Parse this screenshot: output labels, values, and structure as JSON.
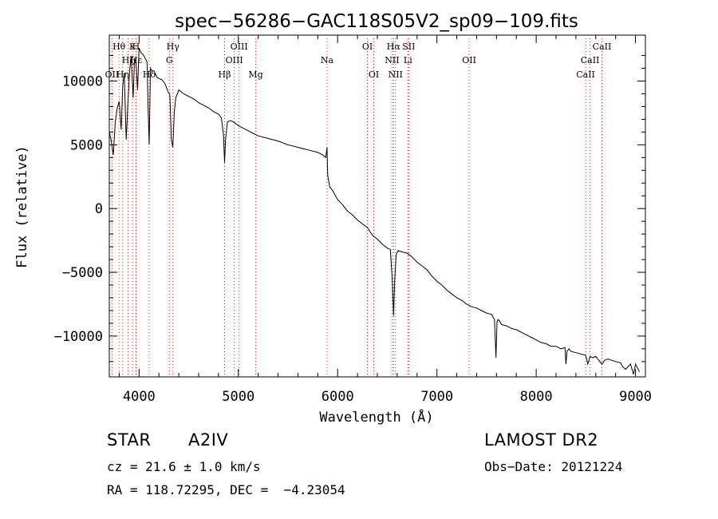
{
  "chart_data": {
    "type": "line",
    "title": "spec−56286−GAC118S05V2_sp09−109.fits",
    "xlabel": "Wavelength (Å)",
    "ylabel": "Flux (relative)",
    "xlim": [
      3700,
      9100
    ],
    "ylim": [
      -13200,
      13600
    ],
    "x_ticks": [
      4000,
      5000,
      6000,
      7000,
      8000,
      9000
    ],
    "x_tick_labels": [
      "4000",
      "5000",
      "6000",
      "7000",
      "8000",
      "9000"
    ],
    "y_ticks": [
      -10000,
      -5000,
      0,
      5000,
      10000
    ],
    "y_tick_labels": [
      "−10000",
      "−5000",
      "0",
      "5000",
      "10000"
    ],
    "grid": false,
    "line_color": "#000000",
    "marker_color": "#c00000",
    "series": [
      {
        "x": [
          3700,
          3720,
          3740,
          3760,
          3780,
          3800,
          3820,
          3835,
          3850,
          3870,
          3889,
          3905,
          3920,
          3940,
          3955,
          3970,
          3985,
          4000,
          4020,
          4040,
          4060,
          4080,
          4090,
          4102,
          4115,
          4130,
          4150,
          4180,
          4200,
          4230,
          4260,
          4290,
          4310,
          4325,
          4340,
          4355,
          4370,
          4400,
          4450,
          4500,
          4550,
          4600,
          4650,
          4700,
          4750,
          4800,
          4830,
          4850,
          4861,
          4872,
          4890,
          4920,
          4950,
          5000,
          5050,
          5100,
          5150,
          5200,
          5300,
          5400,
          5500,
          5600,
          5700,
          5800,
          5850,
          5880,
          5893,
          5900,
          5920,
          5950,
          6000,
          6050,
          6100,
          6150,
          6200,
          6250,
          6300,
          6350,
          6400,
          6450,
          6500,
          6530,
          6550,
          6563,
          6575,
          6590,
          6610,
          6650,
          6700,
          6750,
          6800,
          6850,
          6900,
          6950,
          7000,
          7050,
          7100,
          7150,
          7200,
          7250,
          7300,
          7350,
          7400,
          7450,
          7500,
          7550,
          7580,
          7595,
          7605,
          7615,
          7630,
          7650,
          7700,
          7750,
          7800,
          7850,
          7900,
          7950,
          8000,
          8050,
          8100,
          8150,
          8200,
          8250,
          8290,
          8300,
          8310,
          8330,
          8350,
          8400,
          8450,
          8498,
          8520,
          8542,
          8570,
          8600,
          8620,
          8662,
          8690,
          8720,
          8760,
          8800,
          8850,
          8870,
          8900,
          8950,
          8980,
          9000,
          9020,
          9040
        ],
        "y": [
          6000,
          5300,
          4200,
          6800,
          7900,
          8400,
          6200,
          9600,
          10600,
          5400,
          8500,
          10800,
          11900,
          8700,
          11800,
          11300,
          9300,
          12600,
          12200,
          12100,
          11800,
          11500,
          8200,
          5000,
          11000,
          10800,
          10800,
          10300,
          10200,
          10100,
          9800,
          9200,
          8900,
          5400,
          4800,
          7600,
          8700,
          9300,
          9000,
          8800,
          8600,
          8300,
          8100,
          7900,
          7600,
          7400,
          7100,
          5800,
          3600,
          5500,
          6800,
          6900,
          6800,
          6500,
          6300,
          6100,
          5900,
          5700,
          5500,
          5300,
          5000,
          4800,
          4600,
          4400,
          4200,
          4000,
          4800,
          2600,
          1700,
          1400,
          700,
          300,
          -200,
          -500,
          -900,
          -1200,
          -1500,
          -2100,
          -2400,
          -2800,
          -3100,
          -3200,
          -5500,
          -8400,
          -5600,
          -3600,
          -3300,
          -3400,
          -3500,
          -3800,
          -4200,
          -4500,
          -4800,
          -5300,
          -5700,
          -6000,
          -6400,
          -6700,
          -7000,
          -7200,
          -7500,
          -7700,
          -7800,
          -8000,
          -8200,
          -8300,
          -8700,
          -11700,
          -8900,
          -8700,
          -8800,
          -9100,
          -9200,
          -9400,
          -9500,
          -9700,
          -9900,
          -10100,
          -10300,
          -10500,
          -10600,
          -10800,
          -10800,
          -11000,
          -10900,
          -12200,
          -11200,
          -11000,
          -11200,
          -11300,
          -11400,
          -11500,
          -12200,
          -11600,
          -11700,
          -11600,
          -11800,
          -12200,
          -11900,
          -11800,
          -11900,
          -12000,
          -12100,
          -12400,
          -12600,
          -12200,
          -13000,
          -12200,
          -12500,
          -12800
        ]
      }
    ],
    "lines": [
      {
        "label": "OII",
        "wl": 3727,
        "row": 2
      },
      {
        "label": "Hθ",
        "wl": 3798,
        "row": 0
      },
      {
        "label": "Hη",
        "wl": 3835,
        "row": 2
      },
      {
        "label": "Hζ",
        "wl": 3889,
        "row": 1
      },
      {
        "label": "Hε",
        "wl": 3970,
        "row": 1
      },
      {
        "label": "H",
        "wl": 3969,
        "row": 0
      },
      {
        "label": "K",
        "wl": 3934,
        "row": 0
      },
      {
        "label": "Hδ",
        "wl": 4102,
        "row": 2
      },
      {
        "label": "Hγ",
        "wl": 4341,
        "row": 0
      },
      {
        "label": "G",
        "wl": 4305,
        "row": 1
      },
      {
        "label": "Hβ",
        "wl": 4861,
        "row": 2
      },
      {
        "label": "OIII",
        "wl": 4959,
        "row": 1
      },
      {
        "label": "OIII",
        "wl": 5007,
        "row": 0
      },
      {
        "label": "Mg",
        "wl": 5175,
        "row": 2
      },
      {
        "label": "Na",
        "wl": 5893,
        "row": 1
      },
      {
        "label": "OI",
        "wl": 6300,
        "row": 0
      },
      {
        "label": "OI",
        "wl": 6364,
        "row": 2
      },
      {
        "label": "NII",
        "wl": 6548,
        "row": 1
      },
      {
        "label": "Hα",
        "wl": 6563,
        "row": 0
      },
      {
        "label": "NII",
        "wl": 6583,
        "row": 2
      },
      {
        "label": "SII",
        "wl": 6716,
        "row": 0
      },
      {
        "label": "Li",
        "wl": 6708,
        "row": 1
      },
      {
        "label": "OII",
        "wl": 7325,
        "row": 1
      },
      {
        "label": "CaII",
        "wl": 8498,
        "row": 2
      },
      {
        "label": "CaII",
        "wl": 8542,
        "row": 1
      },
      {
        "label": "CaII",
        "wl": 8662,
        "row": 0
      }
    ]
  },
  "info": {
    "object_type": "STAR",
    "subclass": "A2IV",
    "survey": "LAMOST DR2",
    "redshift_line": "cz = 21.6 ± 1.0 km/s",
    "obs_date": "Obs−Date: 20121224",
    "coords": "RA = 118.72295, DEC =  −4.23054"
  }
}
